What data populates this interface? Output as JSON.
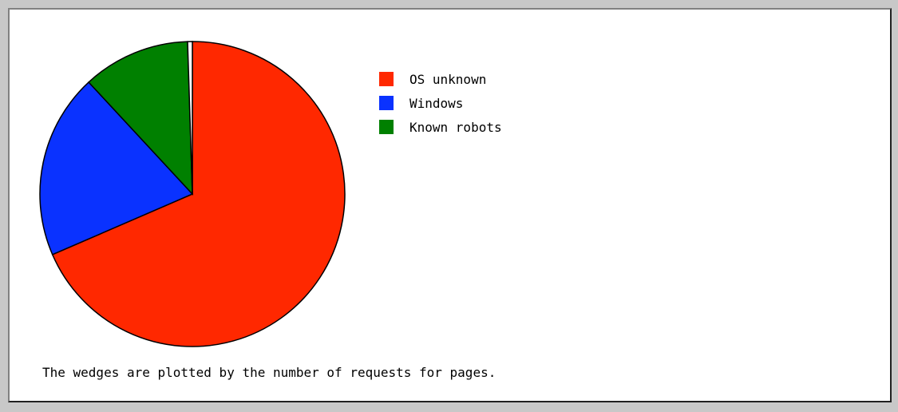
{
  "chart_data": {
    "type": "pie",
    "slices": [
      {
        "label": "OS unknown",
        "value": 68.5,
        "color": "#ff2800"
      },
      {
        "label": "Windows",
        "value": 19.6,
        "color": "#0a32ff"
      },
      {
        "label": "Known robots",
        "value": 11.4,
        "color": "#008000"
      },
      {
        "label": "",
        "value": 0.5,
        "color": "#ffffff"
      }
    ],
    "legend": [
      {
        "label": "OS unknown",
        "color": "#ff2800"
      },
      {
        "label": "Windows",
        "color": "#0a32ff"
      },
      {
        "label": "Known robots",
        "color": "#008000"
      }
    ],
    "legend_position": "right",
    "caption": "The wedges are plotted by the number of requests for pages."
  }
}
